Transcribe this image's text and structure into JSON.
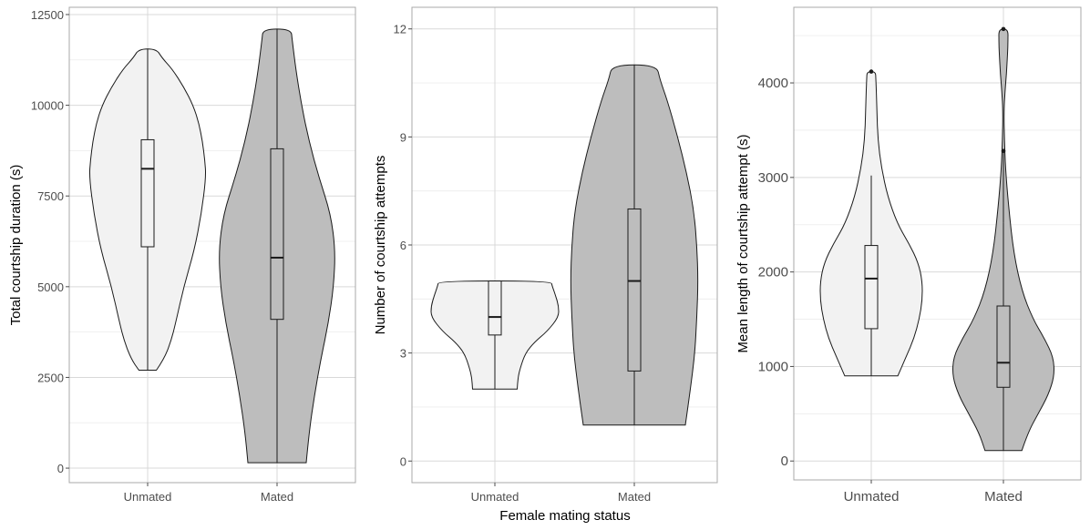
{
  "colors": {
    "Unmated": "#f2f2f2",
    "Mated": "#bdbdbd"
  },
  "xlabel": "Female mating status",
  "chart_data": [
    {
      "type": "violin",
      "ylabel": "Total courtship duration (s)",
      "xlabel": "",
      "categories": [
        "Unmated",
        "Mated"
      ],
      "ylim": [
        -400,
        12700
      ],
      "yticks": [
        0,
        2500,
        5000,
        7500,
        10000,
        12500
      ],
      "yticklabels": [
        "0",
        "2500",
        "5000",
        "7500",
        "10000",
        "12500"
      ],
      "grid": true,
      "groups": [
        {
          "name": "Unmated",
          "min": 2700,
          "q1": 6100,
          "median": 8250,
          "q3": 9050,
          "max": 11550,
          "whisker_low": 2700,
          "whisker_high": 11550,
          "outliers": [],
          "density": [
            [
              2700,
              0.15
            ],
            [
              3000,
              0.28
            ],
            [
              3500,
              0.4
            ],
            [
              4000,
              0.48
            ],
            [
              5000,
              0.62
            ],
            [
              6000,
              0.8
            ],
            [
              7000,
              0.92
            ],
            [
              8000,
              1.0
            ],
            [
              8500,
              0.98
            ],
            [
              9000,
              0.94
            ],
            [
              9500,
              0.88
            ],
            [
              10000,
              0.78
            ],
            [
              10500,
              0.62
            ],
            [
              11000,
              0.42
            ],
            [
              11300,
              0.25
            ],
            [
              11550,
              0.15
            ]
          ]
        },
        {
          "name": "Mated",
          "min": 150,
          "q1": 4100,
          "median": 5800,
          "q3": 8800,
          "max": 12100,
          "whisker_low": 150,
          "whisker_high": 12100,
          "outliers": [],
          "density": [
            [
              150,
              0.5
            ],
            [
              1000,
              0.55
            ],
            [
              2000,
              0.64
            ],
            [
              3000,
              0.75
            ],
            [
              4000,
              0.88
            ],
            [
              5000,
              0.97
            ],
            [
              6000,
              1.0
            ],
            [
              7000,
              0.92
            ],
            [
              8000,
              0.72
            ],
            [
              9000,
              0.55
            ],
            [
              10000,
              0.42
            ],
            [
              11000,
              0.32
            ],
            [
              11800,
              0.26
            ],
            [
              12100,
              0.24
            ]
          ]
        }
      ]
    },
    {
      "type": "violin",
      "ylabel": "Number of courtship attempts",
      "xlabel": "Female mating status",
      "categories": [
        "Unmated",
        "Mated"
      ],
      "ylim": [
        -0.6,
        12.6
      ],
      "yticks": [
        0,
        3,
        6,
        9,
        12
      ],
      "yticklabels": [
        "0",
        "3",
        "6",
        "9",
        "12"
      ],
      "grid": true,
      "groups": [
        {
          "name": "Unmated",
          "min": 2,
          "q1": 3.5,
          "median": 4,
          "q3": 5,
          "max": 5,
          "whisker_low": 2,
          "whisker_high": 5,
          "outliers": [],
          "density": [
            [
              2,
              0.35
            ],
            [
              2.3,
              0.36
            ],
            [
              2.6,
              0.4
            ],
            [
              3.0,
              0.48
            ],
            [
              3.3,
              0.62
            ],
            [
              3.6,
              0.82
            ],
            [
              4.0,
              1.0
            ],
            [
              4.3,
              1.0
            ],
            [
              4.6,
              0.95
            ],
            [
              4.85,
              0.9
            ],
            [
              5,
              0.88
            ]
          ]
        },
        {
          "name": "Mated",
          "min": 1,
          "q1": 2.5,
          "median": 5,
          "q3": 7,
          "max": 11,
          "whisker_low": 1,
          "whisker_high": 11,
          "outliers": [],
          "density": [
            [
              1,
              0.8
            ],
            [
              2,
              0.88
            ],
            [
              3,
              0.95
            ],
            [
              4,
              0.98
            ],
            [
              5,
              1.0
            ],
            [
              6,
              0.98
            ],
            [
              7,
              0.93
            ],
            [
              8,
              0.82
            ],
            [
              9,
              0.68
            ],
            [
              10,
              0.52
            ],
            [
              10.6,
              0.4
            ],
            [
              11,
              0.35
            ]
          ]
        }
      ]
    },
    {
      "type": "violin",
      "ylabel": "Mean length of courtship attempt (s)",
      "xlabel": "",
      "categories": [
        "Unmated",
        "Mated"
      ],
      "ylim": [
        -200,
        4800
      ],
      "yticks": [
        0,
        1000,
        2000,
        3000,
        4000
      ],
      "yticklabels": [
        "0",
        "1000",
        "2000",
        "3000",
        "4000"
      ],
      "grid": true,
      "groups": [
        {
          "name": "Unmated",
          "min": 900,
          "q1": 1400,
          "median": 1930,
          "q3": 2280,
          "max": 4120,
          "whisker_low": 900,
          "whisker_high": 3020,
          "outliers": [
            4120
          ],
          "density": [
            [
              900,
              0.52
            ],
            [
              1100,
              0.68
            ],
            [
              1300,
              0.84
            ],
            [
              1500,
              0.94
            ],
            [
              1700,
              1.0
            ],
            [
              1900,
              1.0
            ],
            [
              2100,
              0.92
            ],
            [
              2300,
              0.74
            ],
            [
              2500,
              0.52
            ],
            [
              2800,
              0.32
            ],
            [
              3100,
              0.2
            ],
            [
              3400,
              0.13
            ],
            [
              3700,
              0.11
            ],
            [
              3900,
              0.1
            ],
            [
              4050,
              0.09
            ],
            [
              4120,
              0.08
            ]
          ]
        },
        {
          "name": "Mated",
          "min": 110,
          "q1": 780,
          "median": 1040,
          "q3": 1640,
          "max": 4570,
          "whisker_low": 110,
          "whisker_high": 2520,
          "outliers": [
            3280,
            4570
          ],
          "density": [
            [
              110,
              0.36
            ],
            [
              300,
              0.48
            ],
            [
              500,
              0.68
            ],
            [
              700,
              0.88
            ],
            [
              900,
              1.0
            ],
            [
              1100,
              0.98
            ],
            [
              1300,
              0.8
            ],
            [
              1500,
              0.58
            ],
            [
              1800,
              0.36
            ],
            [
              2200,
              0.2
            ],
            [
              2700,
              0.1
            ],
            [
              3100,
              0.04
            ],
            [
              3400,
              0.02
            ],
            [
              3700,
              0.01
            ],
            [
              3900,
              0.03
            ],
            [
              4100,
              0.06
            ],
            [
              4300,
              0.08
            ],
            [
              4450,
              0.09
            ],
            [
              4570,
              0.09
            ]
          ]
        }
      ]
    }
  ]
}
